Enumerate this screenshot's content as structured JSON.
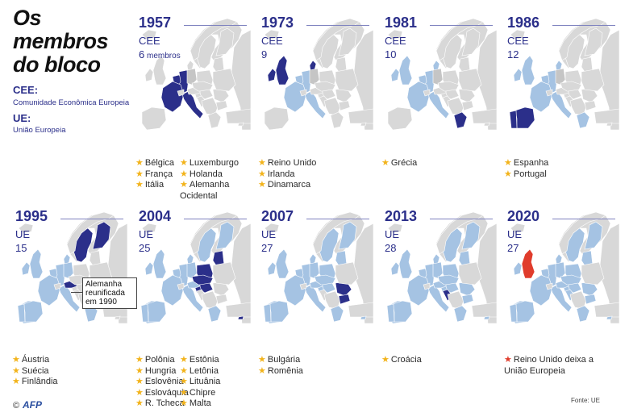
{
  "title": "Os membros do bloco",
  "legend": [
    {
      "abbr": "CEE:",
      "desc": "Comunidade Econômica Europeia"
    },
    {
      "abbr": "UE:",
      "desc": "União Europeia"
    }
  ],
  "colors": {
    "land": "#d8d8d8",
    "existing_member": "#a5c3e3",
    "new_member": "#2b2f8a",
    "leaving": "#e03c2c",
    "german_east": "#c5c5c5",
    "star": "#f2b31b",
    "title_blue": "#2b2f8a"
  },
  "panels": [
    {
      "year": "1957",
      "org": "CEE",
      "members": "6",
      "members_suffix": "membros",
      "countries_col1": [
        "Bélgica",
        "França",
        "Itália"
      ],
      "countries_col2": [
        "Luxemburgo",
        "Holanda",
        "Alemanha Ocidental"
      ]
    },
    {
      "year": "1973",
      "org": "CEE",
      "members": "9",
      "members_suffix": "",
      "countries_col1": [
        "Reino Unido",
        "Irlanda",
        "Dinamarca"
      ],
      "countries_col2": []
    },
    {
      "year": "1981",
      "org": "CEE",
      "members": "10",
      "members_suffix": "",
      "countries_col1": [
        "Grécia"
      ],
      "countries_col2": []
    },
    {
      "year": "1986",
      "org": "CEE",
      "members": "12",
      "members_suffix": "",
      "countries_col1": [
        "Espanha",
        "Portugal"
      ],
      "countries_col2": []
    },
    {
      "year": "1995",
      "org": "UE",
      "members": "15",
      "members_suffix": "",
      "countries_col1": [
        "Áustria",
        "Suécia",
        "Finlândia"
      ],
      "countries_col2": []
    },
    {
      "year": "2004",
      "org": "UE",
      "members": "25",
      "members_suffix": "",
      "countries_col1": [
        "Polônia",
        "Hungria",
        "Eslovênia",
        "Eslováquia",
        "R. Tcheca"
      ],
      "countries_col2": [
        "Estônia",
        "Letônia",
        "Lituânia",
        "Chipre",
        "Malta"
      ]
    },
    {
      "year": "2007",
      "org": "UE",
      "members": "27",
      "members_suffix": "",
      "countries_col1": [
        "Bulgária",
        "Romênia"
      ],
      "countries_col2": []
    },
    {
      "year": "2013",
      "org": "UE",
      "members": "28",
      "members_suffix": "",
      "countries_col1": [
        "Croácia"
      ],
      "countries_col2": []
    },
    {
      "year": "2020",
      "org": "UE",
      "members": "27",
      "members_suffix": "",
      "countries_col1": [
        "Reino Unido deixa a União Europeia"
      ],
      "countries_col2": [],
      "leaving": true
    }
  ],
  "callout": "Alemanha reunificada em 1990",
  "footer": {
    "copyright": "©",
    "agency": "AFP",
    "source": "Fonte: UE"
  }
}
